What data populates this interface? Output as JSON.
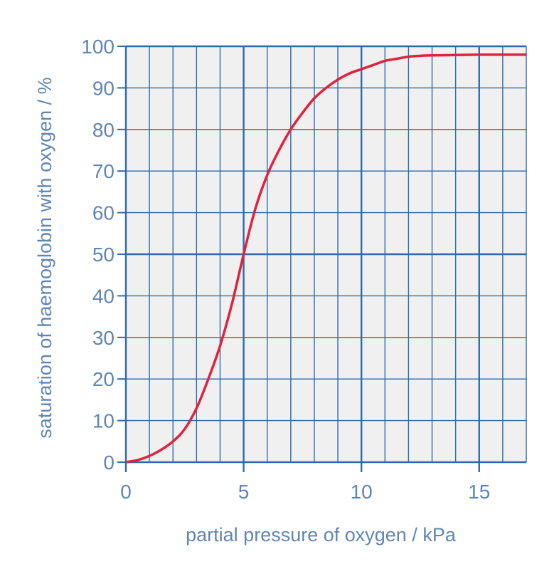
{
  "chart_data": {
    "type": "line",
    "title": "",
    "xlabel": "partial pressure of oxygen / kPa",
    "ylabel": "saturation of haemoglobin with oxygen / %",
    "xlim": [
      0,
      17
    ],
    "ylim": [
      0,
      100
    ],
    "x_ticks": [
      0,
      5,
      10,
      15
    ],
    "x_tick_labels": [
      "0",
      "5",
      "10",
      "15"
    ],
    "y_ticks": [
      0,
      10,
      20,
      30,
      40,
      50,
      60,
      70,
      80,
      90,
      100
    ],
    "y_tick_labels": [
      "0",
      "10",
      "20",
      "30",
      "40",
      "50",
      "60",
      "70",
      "80",
      "90",
      "100"
    ],
    "grid": true,
    "minor_x_step": 1,
    "major_x_step": 5,
    "minor_y_step": 10,
    "major_y_step": 50,
    "legend": "none",
    "series": [
      {
        "color": "#e0223c",
        "x": [
          0,
          0.5,
          1,
          1.5,
          2,
          2.5,
          3,
          3.5,
          4,
          4.5,
          5,
          5.5,
          6,
          6.5,
          7,
          7.5,
          8,
          8.5,
          9,
          9.5,
          10,
          10.5,
          11,
          11.5,
          12,
          12.5,
          13,
          14,
          15,
          16,
          17
        ],
        "y": [
          0,
          0.5,
          1.5,
          3,
          5,
          8,
          13,
          20,
          28,
          38,
          50,
          61,
          69,
          75,
          80,
          84,
          87.5,
          90,
          92,
          93.5,
          94.5,
          95.5,
          96.5,
          97,
          97.5,
          97.7,
          97.8,
          97.9,
          98,
          98,
          98
        ]
      }
    ],
    "colors": {
      "grid": "#2e6aad",
      "plot_background": "#f0f0f0",
      "text": "#5f86b4"
    }
  }
}
